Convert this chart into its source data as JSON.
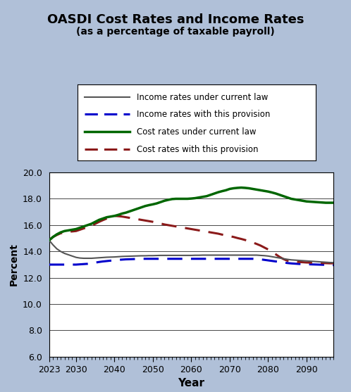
{
  "title": "OASDI Cost Rates and Income Rates",
  "subtitle": "(as a percentage of taxable payroll)",
  "xlabel": "Year",
  "ylabel": "Percent",
  "bg_color": "#b0c0d8",
  "plot_bg_color": "#ffffff",
  "ylim": [
    6.0,
    20.0
  ],
  "yticks": [
    6.0,
    8.0,
    10.0,
    12.0,
    14.0,
    16.0,
    18.0,
    20.0
  ],
  "xticks": [
    2023,
    2030,
    2040,
    2050,
    2060,
    2070,
    2080,
    2090
  ],
  "xlim": [
    2023,
    2097
  ],
  "years": [
    2023,
    2024,
    2025,
    2026,
    2027,
    2028,
    2029,
    2030,
    2031,
    2032,
    2033,
    2034,
    2035,
    2036,
    2037,
    2038,
    2039,
    2040,
    2041,
    2042,
    2043,
    2044,
    2045,
    2046,
    2047,
    2048,
    2049,
    2050,
    2051,
    2052,
    2053,
    2054,
    2055,
    2056,
    2057,
    2058,
    2059,
    2060,
    2061,
    2062,
    2063,
    2064,
    2065,
    2066,
    2067,
    2068,
    2069,
    2070,
    2071,
    2072,
    2073,
    2074,
    2075,
    2076,
    2077,
    2078,
    2079,
    2080,
    2081,
    2082,
    2083,
    2084,
    2085,
    2086,
    2087,
    2088,
    2089,
    2090,
    2091,
    2092,
    2093,
    2094,
    2095,
    2096,
    2097
  ],
  "income_current_law": [
    14.85,
    14.5,
    14.2,
    14.0,
    13.85,
    13.75,
    13.65,
    13.55,
    13.5,
    13.48,
    13.48,
    13.48,
    13.5,
    13.52,
    13.54,
    13.56,
    13.57,
    13.58,
    13.6,
    13.62,
    13.63,
    13.64,
    13.65,
    13.66,
    13.67,
    13.67,
    13.68,
    13.68,
    13.69,
    13.7,
    13.7,
    13.7,
    13.7,
    13.7,
    13.7,
    13.7,
    13.7,
    13.7,
    13.71,
    13.71,
    13.72,
    13.72,
    13.72,
    13.72,
    13.72,
    13.72,
    13.72,
    13.72,
    13.72,
    13.72,
    13.72,
    13.72,
    13.72,
    13.72,
    13.72,
    13.7,
    13.68,
    13.65,
    13.6,
    13.55,
    13.5,
    13.45,
    13.4,
    13.36,
    13.34,
    13.32,
    13.3,
    13.28,
    13.26,
    13.24,
    13.22,
    13.2,
    13.18,
    13.16,
    13.15
  ],
  "income_provision": [
    13.0,
    13.0,
    13.0,
    13.0,
    13.0,
    13.0,
    13.0,
    13.0,
    13.02,
    13.04,
    13.06,
    13.1,
    13.15,
    13.2,
    13.24,
    13.27,
    13.3,
    13.33,
    13.36,
    13.38,
    13.4,
    13.41,
    13.42,
    13.43,
    13.44,
    13.44,
    13.44,
    13.44,
    13.44,
    13.44,
    13.44,
    13.44,
    13.44,
    13.44,
    13.44,
    13.44,
    13.44,
    13.44,
    13.44,
    13.44,
    13.44,
    13.44,
    13.44,
    13.44,
    13.44,
    13.44,
    13.44,
    13.44,
    13.44,
    13.44,
    13.44,
    13.44,
    13.44,
    13.44,
    13.42,
    13.4,
    13.36,
    13.32,
    13.28,
    13.24,
    13.2,
    13.16,
    13.12,
    13.09,
    13.07,
    13.05,
    13.04,
    13.03,
    13.02,
    13.01,
    13.0,
    12.99,
    12.98,
    12.97,
    12.96
  ],
  "cost_current_law": [
    14.85,
    15.1,
    15.3,
    15.45,
    15.55,
    15.6,
    15.65,
    15.7,
    15.8,
    15.9,
    16.0,
    16.1,
    16.25,
    16.4,
    16.5,
    16.6,
    16.65,
    16.7,
    16.78,
    16.88,
    16.95,
    17.05,
    17.15,
    17.25,
    17.35,
    17.45,
    17.52,
    17.58,
    17.65,
    17.75,
    17.85,
    17.92,
    17.98,
    18.0,
    18.0,
    18.0,
    18.0,
    18.02,
    18.05,
    18.1,
    18.15,
    18.2,
    18.3,
    18.4,
    18.5,
    18.58,
    18.65,
    18.75,
    18.8,
    18.83,
    18.85,
    18.83,
    18.8,
    18.75,
    18.7,
    18.65,
    18.6,
    18.55,
    18.48,
    18.4,
    18.3,
    18.2,
    18.1,
    18.0,
    17.95,
    17.9,
    17.85,
    17.8,
    17.78,
    17.76,
    17.74,
    17.72,
    17.7,
    17.7,
    17.7
  ],
  "cost_provision": [
    14.85,
    15.1,
    15.25,
    15.38,
    15.45,
    15.5,
    15.52,
    15.55,
    15.65,
    15.75,
    15.85,
    15.95,
    16.1,
    16.25,
    16.38,
    16.5,
    16.6,
    16.7,
    16.68,
    16.65,
    16.6,
    16.55,
    16.5,
    16.45,
    16.4,
    16.35,
    16.3,
    16.25,
    16.18,
    16.12,
    16.05,
    16.0,
    15.95,
    15.9,
    15.85,
    15.8,
    15.75,
    15.7,
    15.65,
    15.6,
    15.55,
    15.5,
    15.45,
    15.4,
    15.35,
    15.28,
    15.22,
    15.16,
    15.1,
    15.02,
    14.95,
    14.87,
    14.78,
    14.68,
    14.57,
    14.45,
    14.3,
    14.15,
    13.97,
    13.78,
    13.58,
    13.42,
    13.3,
    13.25,
    13.22,
    13.2,
    13.18,
    13.16,
    13.15,
    13.14,
    13.13,
    13.12,
    13.11,
    13.1,
    13.1
  ],
  "income_current_law_color": "#555555",
  "income_provision_color": "#0000cc",
  "cost_current_law_color": "#006600",
  "cost_provision_color": "#8b1a1a",
  "legend_labels": [
    "Income rates under current law",
    "Income rates with this provision",
    "Cost rates under current law",
    "Cost rates with this provision"
  ]
}
